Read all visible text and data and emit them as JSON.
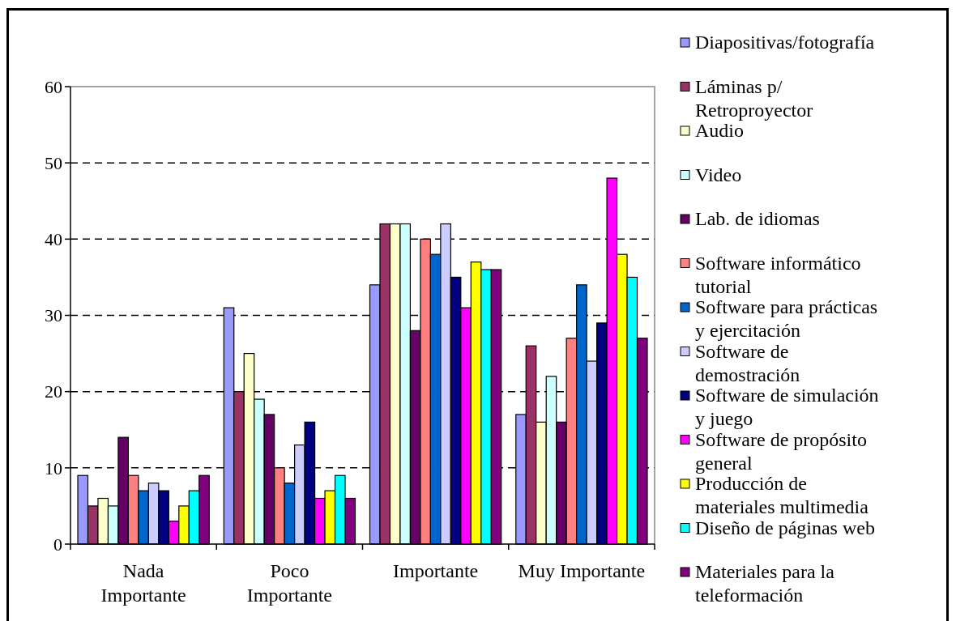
{
  "chart_data": {
    "type": "bar",
    "categories": [
      "Nada Importante",
      "Poco Importante",
      "Importante",
      "Muy Importante"
    ],
    "series": [
      {
        "name": "Diapositivas/fotografía",
        "color": "#9999ff",
        "values": [
          9,
          31,
          34,
          17
        ]
      },
      {
        "name": "Láminas p/ Retroproyector",
        "color": "#993366",
        "values": [
          5,
          20,
          42,
          26
        ]
      },
      {
        "name": "Audio",
        "color": "#ffffcc",
        "values": [
          6,
          25,
          42,
          16
        ]
      },
      {
        "name": "Video",
        "color": "#ccffff",
        "values": [
          5,
          19,
          42,
          22
        ]
      },
      {
        "name": "Lab. de idiomas",
        "color": "#660066",
        "values": [
          14,
          17,
          28,
          16
        ]
      },
      {
        "name": "Software informático tutorial",
        "color": "#ff8080",
        "values": [
          9,
          10,
          40,
          27
        ]
      },
      {
        "name": "Software para prácticas y ejercitación",
        "color": "#0066cc",
        "values": [
          7,
          8,
          38,
          34
        ]
      },
      {
        "name": "Software de demostración",
        "color": "#ccccff",
        "values": [
          8,
          13,
          42,
          24
        ]
      },
      {
        "name": "Software de simulación y juego",
        "color": "#000080",
        "values": [
          7,
          16,
          35,
          29
        ]
      },
      {
        "name": "Software de propósito general",
        "color": "#ff00ff",
        "values": [
          3,
          6,
          31,
          48
        ]
      },
      {
        "name": "Producción de materiales multimedia",
        "color": "#ffff00",
        "values": [
          5,
          7,
          37,
          38
        ]
      },
      {
        "name": "Diseño de páginas web",
        "color": "#00ffff",
        "values": [
          7,
          9,
          36,
          35
        ]
      },
      {
        "name": "Materiales para la teleformación",
        "color": "#800080",
        "values": [
          9,
          6,
          36,
          27
        ]
      }
    ],
    "ylim": [
      0,
      60
    ],
    "yticks": [
      0,
      10,
      20,
      30,
      40,
      50,
      60
    ],
    "grid": "y",
    "legend": "right"
  }
}
